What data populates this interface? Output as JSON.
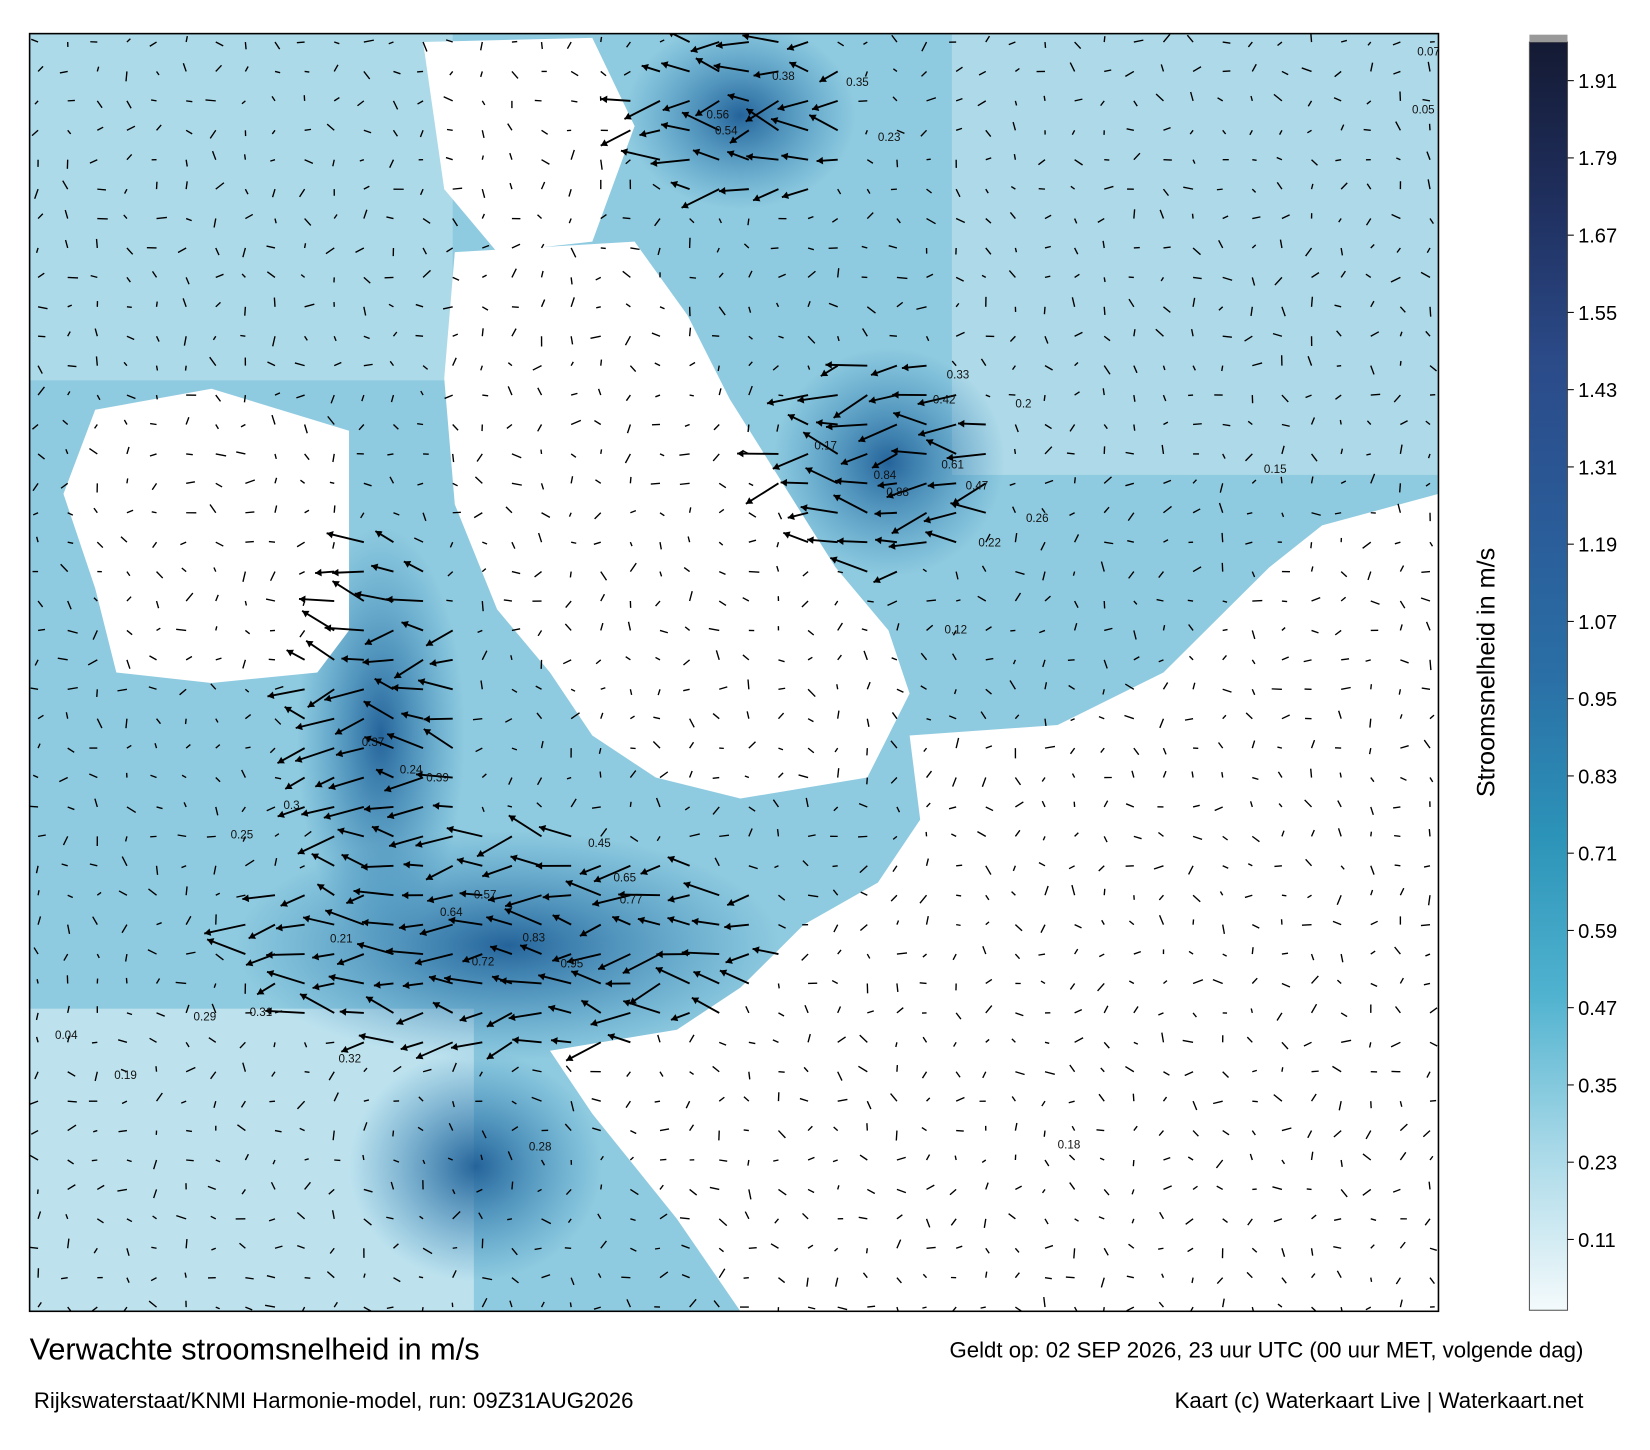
{
  "map": {
    "labels": [
      0.56,
      0.54,
      0.38,
      0.35,
      0.23,
      0.17,
      0.88,
      0.84,
      0.61,
      0.47,
      0.42,
      0.33,
      0.26,
      0.22,
      0.2,
      0.12,
      0.37,
      0.39,
      0.24,
      0.3,
      0.25,
      0.64,
      0.72,
      0.95,
      0.83,
      0.65,
      0.77,
      0.57,
      0.45,
      0.29,
      0.31,
      0.32,
      0.28,
      0.21,
      0.19,
      0.15,
      0.04,
      0.07,
      0.05,
      0.18
    ]
  },
  "colorbar": {
    "title": "Stroomsnelheid in m/s",
    "range": [
      0,
      1.97
    ],
    "ticks": [
      0.11,
      0.23,
      0.35,
      0.47,
      0.59,
      0.71,
      0.83,
      0.95,
      1.07,
      1.19,
      1.31,
      1.43,
      1.55,
      1.67,
      1.79,
      1.91
    ],
    "colors": [
      "#f4fafc",
      "#a9d9e8",
      "#4fb2cf",
      "#2c93b8",
      "#2a6fa6",
      "#2a5b98",
      "#2b4a88",
      "#1f2f5e",
      "#141a33"
    ]
  },
  "footer": {
    "title": "Verwachte stroomsnelheid in m/s",
    "valid": "Geldt op: 02 SEP 2026, 23 uur UTC (00 uur MET, volgende dag)",
    "run": "Rijkswaterstaat/KNMI Harmonie-model, run: 09Z31AUG2026",
    "credit": "Kaart (c) Waterkaart Live | Waterkaart.net"
  }
}
